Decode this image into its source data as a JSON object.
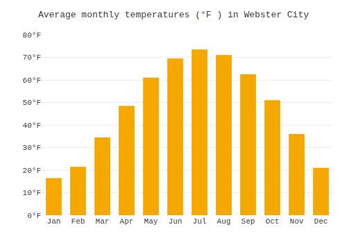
{
  "chart_data": {
    "type": "bar",
    "title": "Average monthly temperatures (°F ) in Webster City",
    "categories": [
      "Jan",
      "Feb",
      "Mar",
      "Apr",
      "May",
      "Jun",
      "Jul",
      "Aug",
      "Sep",
      "Oct",
      "Nov",
      "Dec"
    ],
    "values": [
      16.5,
      21.5,
      34.5,
      48.5,
      61.0,
      69.5,
      73.5,
      71.0,
      62.5,
      51.0,
      36.0,
      21.0
    ],
    "color": "#F5A800",
    "ylim": [
      0,
      80
    ],
    "yticks": [
      {
        "value": 0,
        "label": "0°F"
      },
      {
        "value": 10,
        "label": "10°F"
      },
      {
        "value": 20,
        "label": "20°F"
      },
      {
        "value": 30,
        "label": "30°F"
      },
      {
        "value": 40,
        "label": "40°F"
      },
      {
        "value": 50,
        "label": "50°F"
      },
      {
        "value": 60,
        "label": "60°F"
      },
      {
        "value": 70,
        "label": "70°F"
      },
      {
        "value": 80,
        "label": "80°F"
      }
    ],
    "grid": true
  }
}
